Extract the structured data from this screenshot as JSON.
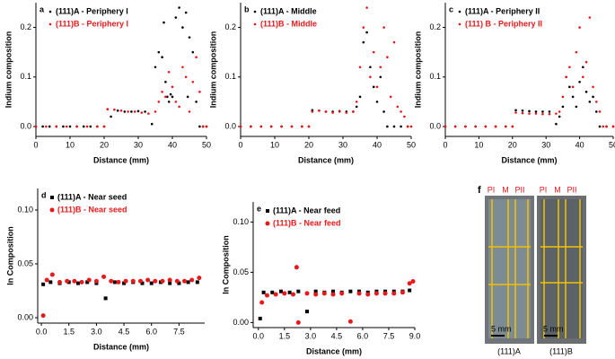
{
  "chart_data": [
    {
      "type": "scatter",
      "panel": "a",
      "xlabel": "Distance (mm)",
      "ylabel": "Indium composition",
      "xlim": [
        0,
        50
      ],
      "ylim": [
        -0.02,
        0.25
      ],
      "xticks": [
        0,
        10,
        20,
        30,
        40,
        50
      ],
      "yticks": [
        {
          "value": 0,
          "label": "0.0"
        },
        0.1,
        0.2
      ],
      "series": [
        {
          "name": "(111)A - Periphery I",
          "color": "#000000",
          "marker": "dot",
          "x": [
            0,
            2,
            4,
            6,
            8,
            10,
            12,
            14,
            16,
            18,
            20,
            21,
            22,
            24,
            26,
            28,
            30,
            32,
            34,
            35,
            36,
            37,
            37.5,
            38,
            38.5,
            39,
            39.5,
            40,
            41,
            42,
            43,
            44,
            44.5,
            45,
            46,
            47,
            48,
            49,
            50
          ],
          "values": [
            0,
            0,
            0,
            0,
            0,
            0,
            0,
            0,
            0,
            0,
            0,
            0.035,
            0.02,
            0.032,
            0.03,
            0.03,
            0.031,
            0.03,
            0.005,
            0.12,
            0.15,
            0.14,
            0.21,
            0.09,
            0.06,
            0.05,
            0.065,
            0.06,
            0.22,
            0.24,
            0.2,
            0.23,
            0.06,
            0.18,
            0.15,
            0.05,
            0,
            0,
            0
          ]
        },
        {
          "name": "(111)B - Periphery I",
          "color": "#e8191b",
          "marker": "dot",
          "x": [
            0,
            3,
            6,
            9,
            12,
            15,
            18,
            20,
            21,
            23,
            25,
            27,
            29,
            31,
            33,
            35,
            36,
            37,
            38,
            39,
            40,
            41,
            42,
            43,
            44,
            45,
            46,
            47,
            48,
            49,
            50
          ],
          "values": [
            0,
            0,
            0,
            0,
            0,
            0,
            0,
            0,
            0.035,
            0.034,
            0.032,
            0.03,
            0.03,
            0.028,
            0.026,
            0.03,
            0.05,
            0.07,
            0.06,
            0.11,
            0.08,
            0.05,
            0.04,
            0.12,
            0.1,
            0.03,
            0.09,
            0.14,
            0.07,
            0,
            0
          ]
        }
      ]
    },
    {
      "type": "scatter",
      "panel": "b",
      "xlabel": "Distance (mm)",
      "ylabel": "Indium composition",
      "xlim": [
        0,
        50
      ],
      "ylim": [
        -0.02,
        0.25
      ],
      "xticks": [
        0,
        10,
        20,
        30,
        40,
        50
      ],
      "yticks": [
        {
          "value": 0,
          "label": "0.0"
        },
        0.1,
        0.2
      ],
      "series": [
        {
          "name": "(111)A - Middle",
          "color": "#000000",
          "marker": "dot",
          "x": [
            0,
            3,
            6,
            9,
            12,
            15,
            18,
            20,
            21,
            23,
            25,
            27,
            29,
            31,
            33,
            34,
            35,
            36,
            37,
            38,
            39,
            40,
            41,
            42,
            43,
            45,
            47,
            49
          ],
          "values": [
            0,
            0,
            0,
            0,
            0,
            0,
            0,
            0,
            0.033,
            0.032,
            0.03,
            0.03,
            0.031,
            0.03,
            0.03,
            0.04,
            0.06,
            0.17,
            0.19,
            0.12,
            0.08,
            0.05,
            0.1,
            0.03,
            0,
            0,
            0,
            0
          ]
        },
        {
          "name": "(111)B - Middle",
          "color": "#e8191b",
          "marker": "dot",
          "x": [
            0,
            3,
            6,
            9,
            12,
            15,
            18,
            20,
            21,
            23,
            25,
            27,
            29,
            31,
            33,
            34,
            35,
            36,
            37,
            38,
            39,
            40,
            41,
            42,
            43,
            44,
            45,
            46,
            47,
            48,
            49,
            50
          ],
          "values": [
            0,
            0,
            0,
            0,
            0,
            0,
            0,
            0,
            0.03,
            0.032,
            0.03,
            0.028,
            0.03,
            0.028,
            0.03,
            0.05,
            0.12,
            0.2,
            0.24,
            0.1,
            0.15,
            0.08,
            0.12,
            0.2,
            0.14,
            0.06,
            0.17,
            0.04,
            0.03,
            0.02,
            0,
            0
          ]
        }
      ]
    },
    {
      "type": "scatter",
      "panel": "c",
      "xlabel": "Distance (mm)",
      "ylabel": "Indium composition",
      "xlim": [
        0,
        50
      ],
      "ylim": [
        -0.02,
        0.25
      ],
      "xticks": [
        0,
        10,
        20,
        30,
        40,
        50
      ],
      "yticks": [
        {
          "value": 0,
          "label": "0.0"
        },
        0.1,
        0.2
      ],
      "series": [
        {
          "name": "(111)A - Periphery II",
          "color": "#000000",
          "marker": "dot",
          "x": [
            0,
            3,
            6,
            9,
            12,
            15,
            18,
            20,
            21,
            23,
            25,
            27,
            29,
            31,
            33,
            34,
            35,
            36,
            37,
            38,
            39,
            40,
            41,
            42,
            43,
            44,
            45,
            46,
            48,
            50
          ],
          "values": [
            0,
            0,
            0,
            0,
            0,
            0,
            0,
            0,
            0.033,
            0.032,
            0.031,
            0.03,
            0.03,
            0.03,
            0.005,
            0.02,
            0.04,
            0.1,
            0.08,
            0.06,
            0.04,
            0.09,
            0.12,
            0.07,
            0.05,
            0.06,
            0.03,
            0,
            0,
            0
          ]
        },
        {
          "name": "(111) B - Periphery II",
          "color": "#e8191b",
          "marker": "dot",
          "x": [
            0,
            3,
            6,
            9,
            12,
            15,
            18,
            20,
            21,
            23,
            25,
            27,
            29,
            31,
            33,
            34,
            35,
            36,
            37,
            38,
            39,
            40,
            41,
            42,
            43,
            44,
            45,
            46,
            47,
            48,
            50
          ],
          "values": [
            0,
            0,
            0,
            0,
            0,
            0,
            0,
            0,
            0.028,
            0.027,
            0.026,
            0.026,
            0.025,
            0.025,
            0.026,
            0.03,
            0.06,
            0.1,
            0.12,
            0.08,
            0.15,
            0.2,
            0.1,
            0.13,
            0.22,
            0.08,
            0.05,
            0.03,
            0,
            0,
            0
          ]
        }
      ]
    },
    {
      "type": "scatter",
      "panel": "d",
      "xlabel": "Distance (mm)",
      "ylabel": "In Composition",
      "xlim": [
        -0.2,
        8.9
      ],
      "ylim": [
        -0.005,
        0.12
      ],
      "xticks": [
        {
          "value": 0,
          "label": "0.0"
        },
        1.5,
        {
          "value": 3,
          "label": "3.0"
        },
        4.5,
        {
          "value": 6,
          "label": "6.0"
        },
        7.5
      ],
      "yticks": [
        {
          "value": 0,
          "label": "0.00"
        },
        0.05,
        {
          "value": 0.1,
          "label": "0.10"
        }
      ],
      "series": [
        {
          "name": "(111)A - Near seed",
          "color": "#000000",
          "marker": "square",
          "x": [
            0.1,
            0.5,
            1,
            1.5,
            2,
            2.5,
            3,
            3.5,
            4,
            4.5,
            5,
            5.5,
            6,
            6.5,
            7,
            7.5,
            8,
            8.5
          ],
          "values": [
            0.031,
            0.033,
            0.032,
            0.033,
            0.032,
            0.033,
            0.032,
            0.018,
            0.033,
            0.032,
            0.033,
            0.032,
            0.032,
            0.033,
            0.032,
            0.032,
            0.033,
            0.033
          ]
        },
        {
          "name": "(111)B - Near seed",
          "color": "#e8191b",
          "marker": "circle",
          "x": [
            0.1,
            0.3,
            0.6,
            1,
            1.4,
            1.8,
            2.2,
            2.6,
            3,
            3.4,
            3.8,
            4.2,
            4.6,
            5,
            5.4,
            5.8,
            6.2,
            6.6,
            7,
            7.4,
            7.8,
            8.2,
            8.6
          ],
          "values": [
            0.002,
            0.035,
            0.04,
            0.033,
            0.034,
            0.034,
            0.033,
            0.035,
            0.034,
            0.038,
            0.034,
            0.033,
            0.034,
            0.034,
            0.034,
            0.035,
            0.034,
            0.034,
            0.035,
            0.034,
            0.034,
            0.035,
            0.037
          ]
        }
      ]
    },
    {
      "type": "scatter",
      "panel": "e",
      "xlabel": "Distance (mm)",
      "ylabel": "In Composition",
      "xlim": [
        -0.3,
        9
      ],
      "ylim": [
        -0.005,
        0.12
      ],
      "xticks": [
        {
          "value": 0,
          "label": "0.0"
        },
        1.5,
        {
          "value": 3,
          "label": "3.0"
        },
        4.5,
        {
          "value": 6,
          "label": "6.0"
        },
        7.5,
        {
          "value": 9,
          "label": "9.0"
        }
      ],
      "yticks": [
        {
          "value": 0,
          "label": "0.00"
        },
        0.05,
        {
          "value": 0.1,
          "label": "0.10"
        }
      ],
      "series": [
        {
          "name": "(111)A - Near feed",
          "color": "#000000",
          "marker": "square",
          "x": [
            0.1,
            0.3,
            0.8,
            1.3,
            1.8,
            2.3,
            2.8,
            3.3,
            3.8,
            4.3,
            4.8,
            5.3,
            5.8,
            6.3,
            6.8,
            7.3,
            7.8,
            8.3,
            8.7
          ],
          "values": [
            0.004,
            0.03,
            0.03,
            0.031,
            0.03,
            0.031,
            0.011,
            0.031,
            0.03,
            0.031,
            0.03,
            0.031,
            0.031,
            0.03,
            0.031,
            0.031,
            0.031,
            0.031,
            0.032
          ]
        },
        {
          "name": "(111)B - Near feed",
          "color": "#e8191b",
          "marker": "circle",
          "x": [
            0.2,
            0.5,
            1,
            1.5,
            2,
            2.2,
            2.3,
            2.8,
            3.3,
            3.8,
            4.3,
            4.8,
            5.3,
            5.8,
            6.3,
            6.8,
            7.3,
            7.8,
            8.3,
            8.7,
            8.9
          ],
          "values": [
            0.02,
            0.027,
            0.028,
            0.029,
            0.028,
            0.055,
            0,
            0.029,
            0.028,
            0.029,
            0.028,
            0.029,
            0.001,
            0.029,
            0.028,
            0.029,
            0.029,
            0.029,
            0.03,
            0.039,
            0.041
          ]
        }
      ]
    }
  ],
  "figure_f": {
    "panel": "f",
    "samples": [
      {
        "columns": [
          "PI",
          "M",
          "PII"
        ],
        "scale": "5 mm",
        "name": "(111)A"
      },
      {
        "columns": [
          "PI",
          "M",
          "PII"
        ],
        "scale": "5 mm",
        "name": "(111)B"
      }
    ]
  }
}
